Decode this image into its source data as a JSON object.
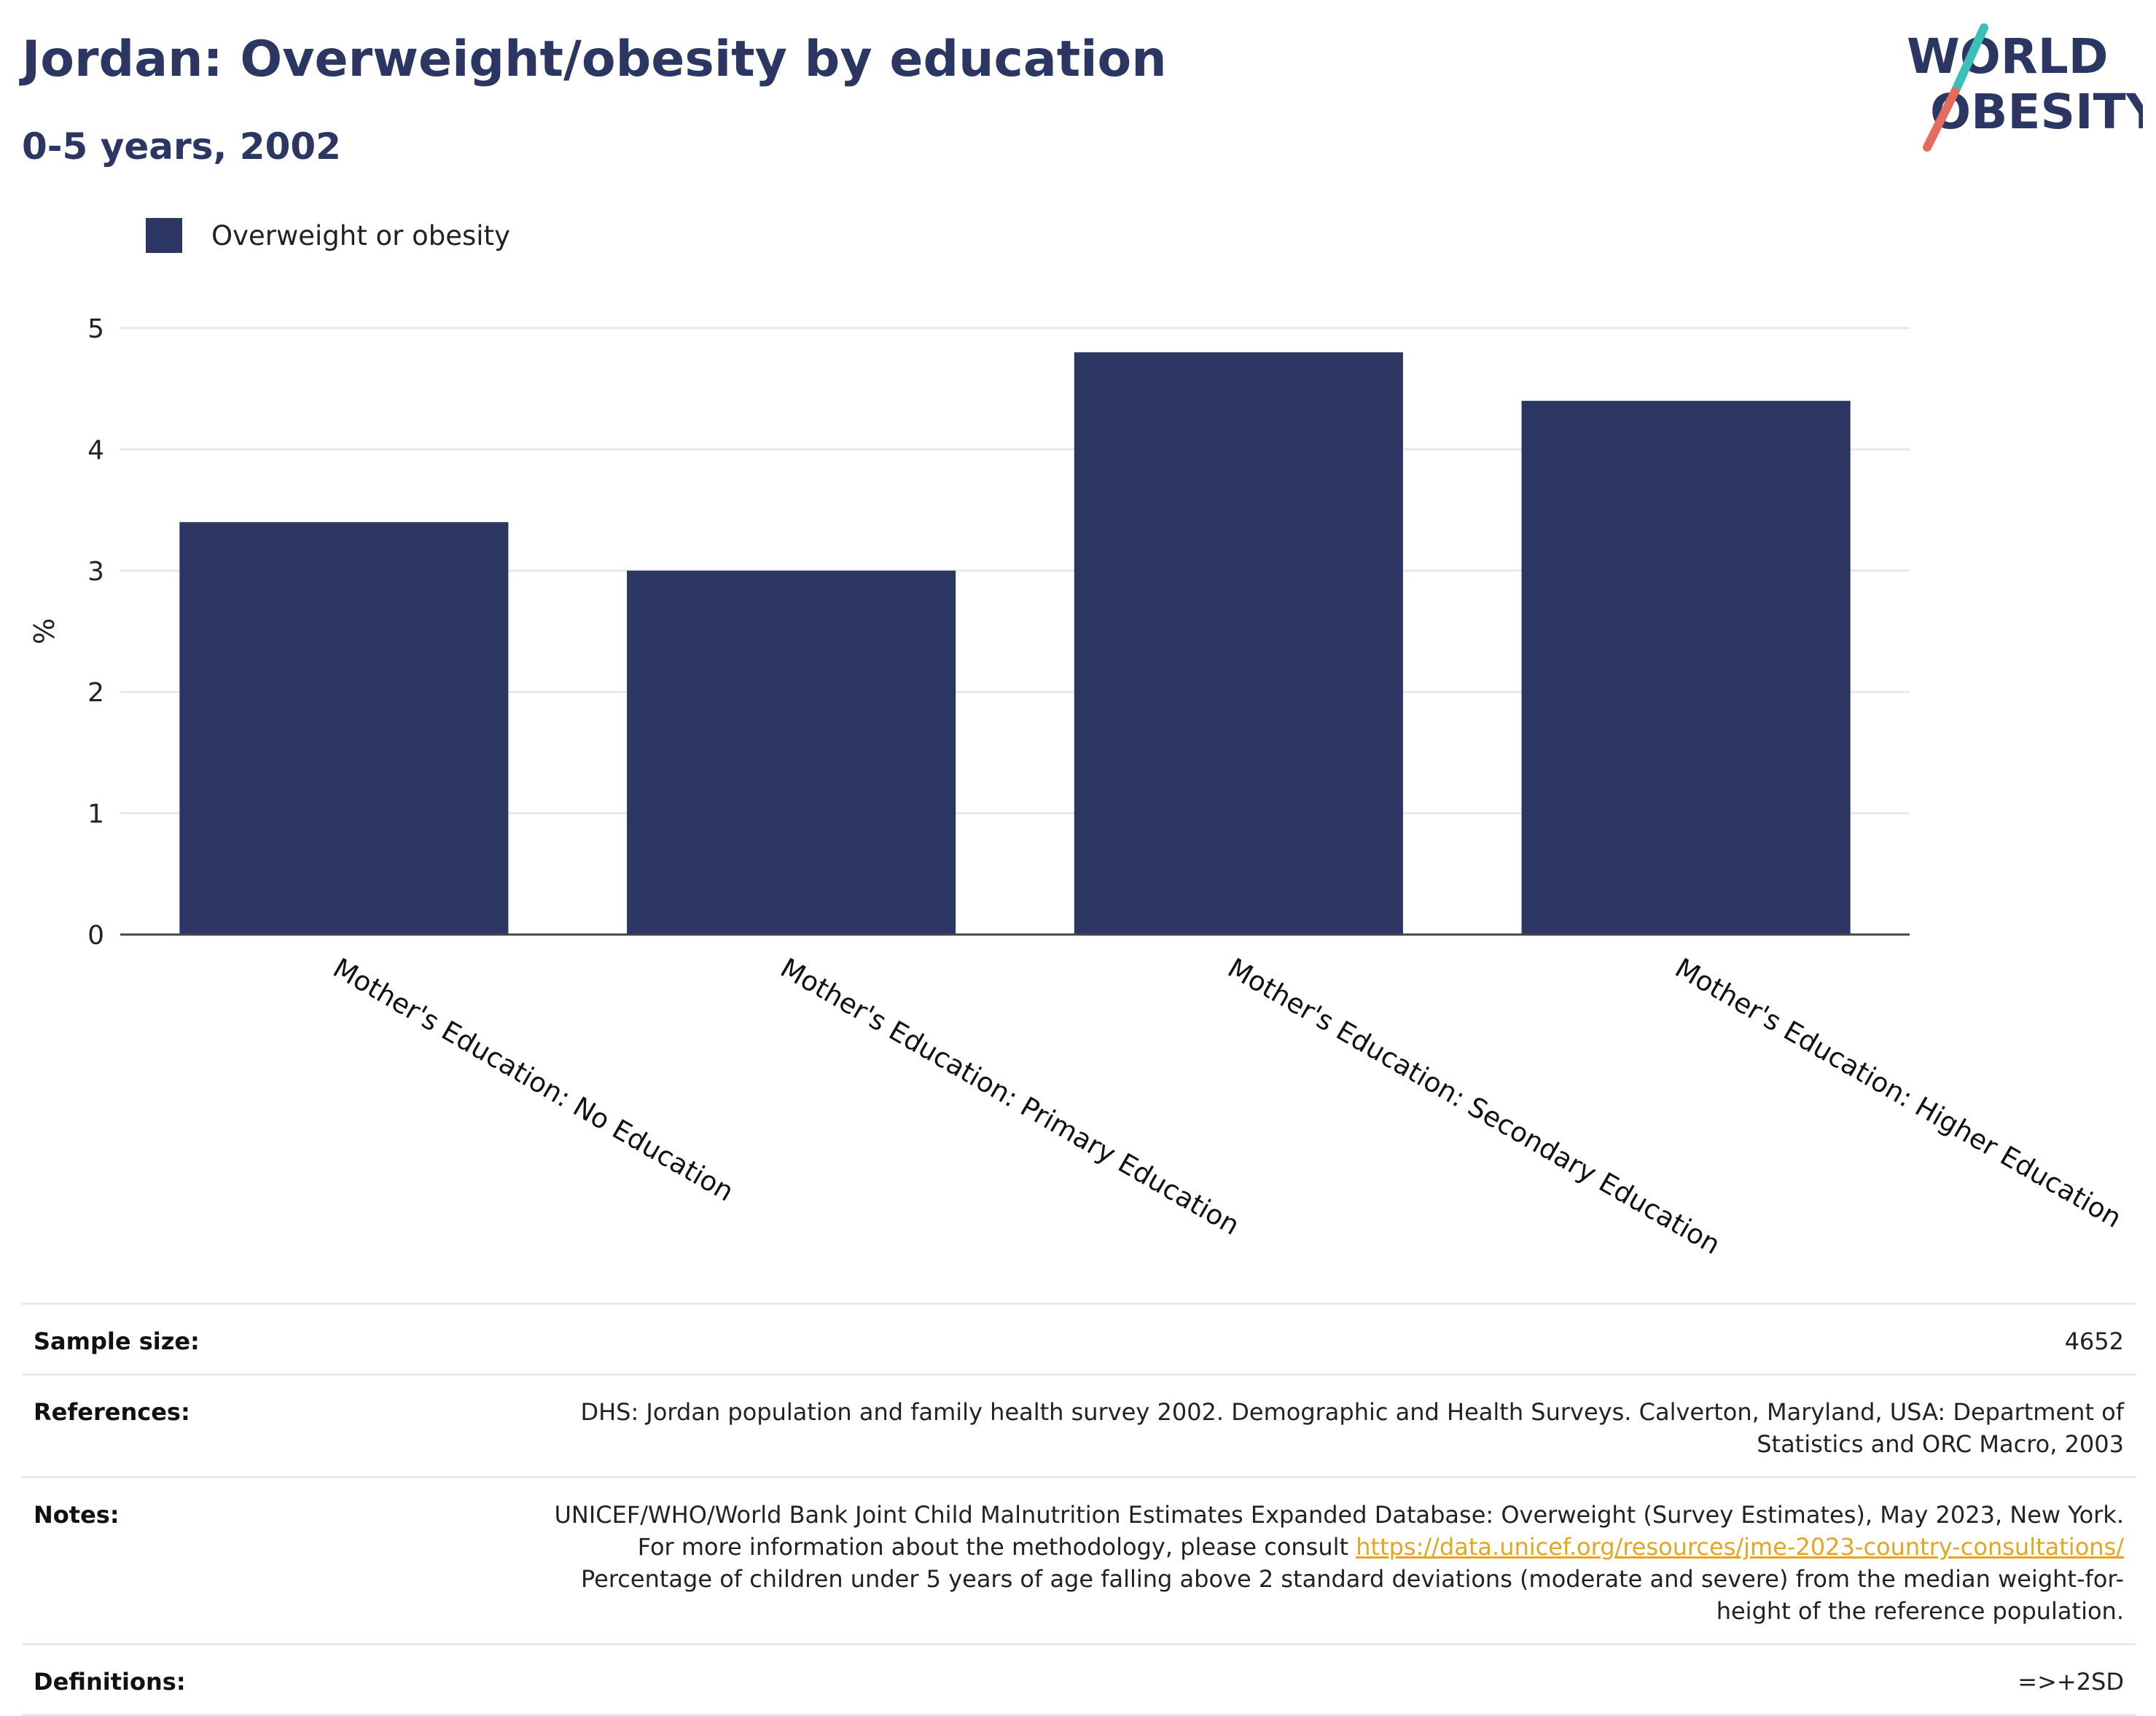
{
  "header": {
    "title": "Jordan: Overweight/obesity by education",
    "subtitle": "0-5 years, 2002"
  },
  "logo": {
    "line1": "WORLD",
    "line2": "OBESITY",
    "colors": {
      "text": "#2b3663",
      "slash_top": "#3bbfb6",
      "slash_bottom": "#e56b5d"
    }
  },
  "legend": {
    "label": "Overweight or obesity",
    "color": "#2b3663"
  },
  "chart_data": {
    "type": "bar",
    "title": "Jordan: Overweight/obesity by education",
    "subtitle": "0-5 years, 2002",
    "xlabel": "",
    "ylabel": "%",
    "ylim": [
      0,
      5
    ],
    "yticks": [
      0,
      1,
      2,
      3,
      4,
      5
    ],
    "grid": true,
    "legend_position": "top-left",
    "bar_color": "#2b3663",
    "categories": [
      "Mother's Education: No Education",
      "Mother's Education: Primary Education",
      "Mother's Education: Secondary Education",
      "Mother's Education: Higher Education"
    ],
    "series": [
      {
        "name": "Overweight or obesity",
        "values": [
          3.4,
          3.0,
          4.8,
          4.4
        ]
      }
    ]
  },
  "info": {
    "sample_size": {
      "label": "Sample size:",
      "value": "4652"
    },
    "references": {
      "label": "References:",
      "value": "DHS: Jordan population and family health survey 2002. Demographic and Health Surveys. Calverton, Maryland, USA: Department of Statistics and ORC Macro, 2003"
    },
    "notes": {
      "label": "Notes:",
      "text_before": "UNICEF/WHO/World Bank Joint Child Malnutrition Estimates Expanded Database: Overweight (Survey Estimates), May 2023, New York. For more information about the methodology, please consult ",
      "link": "https://data.unicef.org/resources/jme-2023-country-consultations/",
      "text_after": " Percentage of children under 5 years of age falling above 2 standard deviations (moderate and severe) from the median weight-for-height of the reference population."
    },
    "definitions": {
      "label": "Definitions:",
      "value": "=>+2SD"
    }
  }
}
